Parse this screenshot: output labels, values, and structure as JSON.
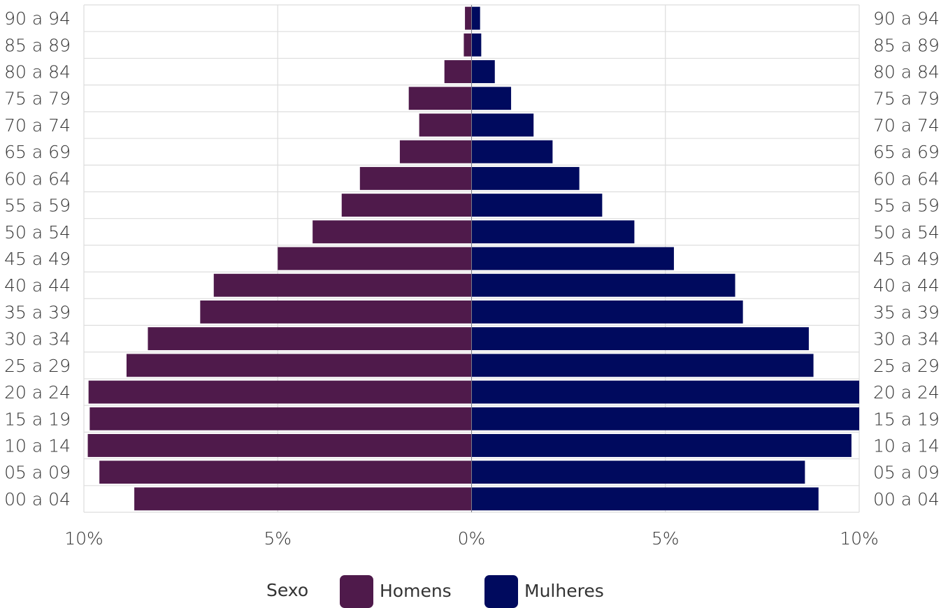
{
  "chart_data": {
    "type": "bar",
    "orientation": "horizontal-population-pyramid",
    "categories": [
      "00 a 04",
      "05 a 09",
      "10 a 14",
      "15 a 19",
      "20 a 24",
      "25 a 29",
      "30 a 34",
      "35 a 39",
      "40 a 44",
      "45 a 49",
      "50 a 54",
      "55 a 59",
      "60 a 64",
      "65 a 69",
      "70 a 74",
      "75 a 79",
      "80 a 84",
      "85 a 89",
      "90 a 94"
    ],
    "series": [
      {
        "name": "Homens",
        "color": "#4f1a4b",
        "side": "left",
        "values": [
          8.7,
          9.6,
          9.9,
          9.85,
          9.88,
          8.9,
          8.35,
          7.0,
          6.65,
          5.0,
          4.1,
          3.35,
          2.88,
          1.85,
          1.35,
          1.62,
          0.7,
          0.2,
          0.17
        ]
      },
      {
        "name": "Mulheres",
        "color": "#000a5e",
        "side": "right",
        "values": [
          8.95,
          8.6,
          9.8,
          10.0,
          10.0,
          8.82,
          8.7,
          7.0,
          6.8,
          5.22,
          4.2,
          3.37,
          2.78,
          2.09,
          1.6,
          1.02,
          0.6,
          0.25,
          0.22
        ]
      }
    ],
    "x_ticks": [
      "10%",
      "5%",
      "0%",
      "5%",
      "10%"
    ],
    "xlim": [
      -10,
      10
    ],
    "grid": true,
    "legend": {
      "title": "Sexo",
      "position": "bottom-center",
      "items": [
        "Homens",
        "Mulheres"
      ]
    }
  }
}
